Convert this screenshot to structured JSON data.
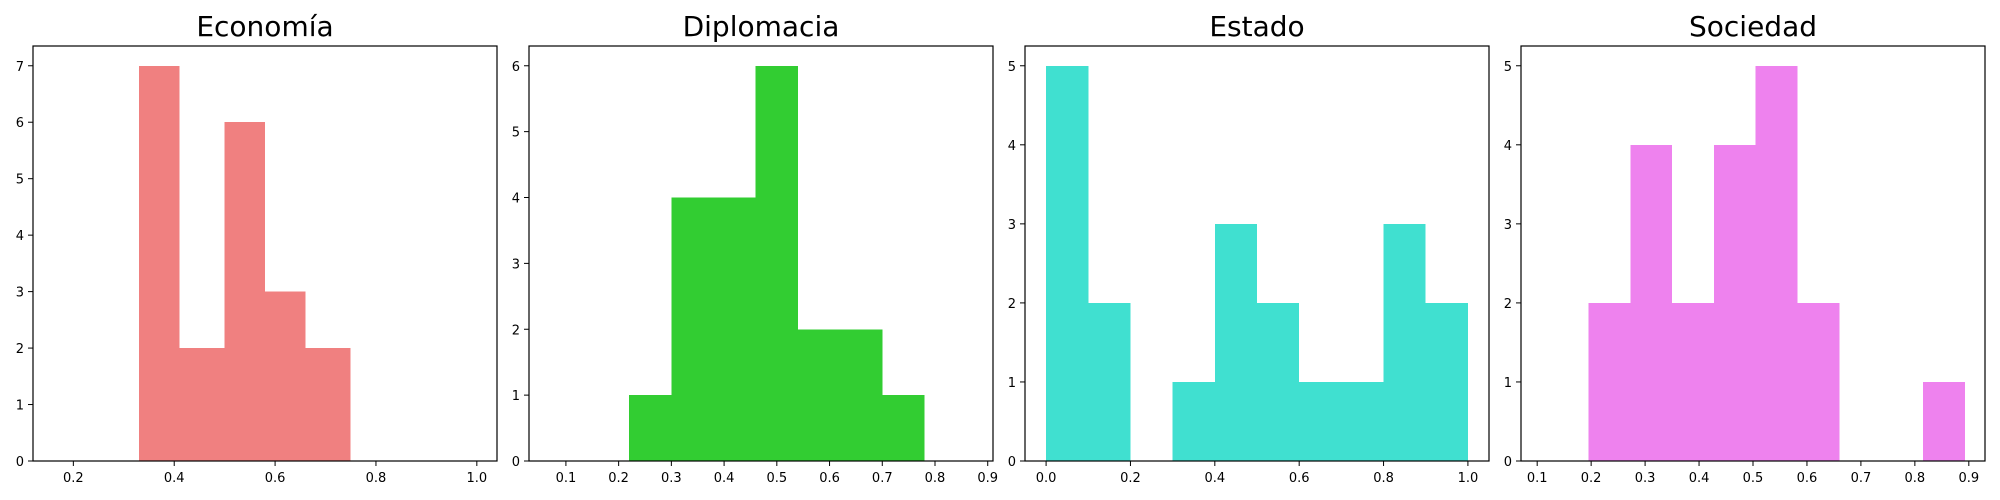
{
  "chart_data": [
    {
      "type": "bar",
      "title": "Economía",
      "color": "#F08080",
      "xlim": [
        0.12,
        1.04
      ],
      "ylim": [
        0,
        7.35
      ],
      "xticks": [
        "0.2",
        "0.4",
        "0.6",
        "0.8",
        "1.0"
      ],
      "yticks": [
        "0",
        "1",
        "2",
        "3",
        "4",
        "5",
        "6",
        "7"
      ],
      "bins": [
        {
          "x0": 0.33,
          "x1": 0.41,
          "value": 7
        },
        {
          "x0": 0.41,
          "x1": 0.5,
          "value": 2
        },
        {
          "x0": 0.5,
          "x1": 0.58,
          "value": 6
        },
        {
          "x0": 0.58,
          "x1": 0.66,
          "value": 3
        },
        {
          "x0": 0.66,
          "x1": 0.75,
          "value": 2
        }
      ]
    },
    {
      "type": "bar",
      "title": "Diplomacia",
      "color": "#32CD32",
      "xlim": [
        0.03,
        0.91
      ],
      "ylim": [
        0,
        6.3
      ],
      "xticks": [
        "0.1",
        "0.2",
        "0.3",
        "0.4",
        "0.5",
        "0.6",
        "0.7",
        "0.8",
        "0.9"
      ],
      "yticks": [
        "0",
        "1",
        "2",
        "3",
        "4",
        "5",
        "6"
      ],
      "bins": [
        {
          "x0": 0.22,
          "x1": 0.3,
          "value": 1
        },
        {
          "x0": 0.3,
          "x1": 0.38,
          "value": 4
        },
        {
          "x0": 0.38,
          "x1": 0.46,
          "value": 4
        },
        {
          "x0": 0.46,
          "x1": 0.54,
          "value": 6
        },
        {
          "x0": 0.54,
          "x1": 0.62,
          "value": 2
        },
        {
          "x0": 0.62,
          "x1": 0.7,
          "value": 2
        },
        {
          "x0": 0.7,
          "x1": 0.78,
          "value": 1
        }
      ]
    },
    {
      "type": "bar",
      "title": "Estado",
      "color": "#40E0D0",
      "xlim": [
        -0.05,
        1.05
      ],
      "ylim": [
        0,
        5.25
      ],
      "xticks": [
        "0.0",
        "0.2",
        "0.4",
        "0.6",
        "0.8",
        "1.0"
      ],
      "yticks": [
        "0",
        "1",
        "2",
        "3",
        "4",
        "5"
      ],
      "bins": [
        {
          "x0": 0.0,
          "x1": 0.1,
          "value": 5
        },
        {
          "x0": 0.1,
          "x1": 0.2,
          "value": 2
        },
        {
          "x0": 0.2,
          "x1": 0.3,
          "value": 0
        },
        {
          "x0": 0.3,
          "x1": 0.4,
          "value": 1
        },
        {
          "x0": 0.4,
          "x1": 0.5,
          "value": 3
        },
        {
          "x0": 0.5,
          "x1": 0.6,
          "value": 2
        },
        {
          "x0": 0.6,
          "x1": 0.7,
          "value": 1
        },
        {
          "x0": 0.7,
          "x1": 0.8,
          "value": 1
        },
        {
          "x0": 0.8,
          "x1": 0.9,
          "value": 3
        },
        {
          "x0": 0.9,
          "x1": 1.0,
          "value": 2
        }
      ]
    },
    {
      "type": "bar",
      "title": "Sociedad",
      "color": "#EE82EE",
      "xlim": [
        0.07,
        0.93
      ],
      "ylim": [
        0,
        5.25
      ],
      "xticks": [
        "0.1",
        "0.2",
        "0.3",
        "0.4",
        "0.5",
        "0.6",
        "0.7",
        "0.8",
        "0.9"
      ],
      "yticks": [
        "0",
        "1",
        "2",
        "3",
        "4",
        "5"
      ],
      "bins": [
        {
          "x0": 0.195,
          "x1": 0.2725,
          "value": 2
        },
        {
          "x0": 0.2725,
          "x1": 0.35,
          "value": 4
        },
        {
          "x0": 0.35,
          "x1": 0.4275,
          "value": 2
        },
        {
          "x0": 0.4275,
          "x1": 0.505,
          "value": 4
        },
        {
          "x0": 0.505,
          "x1": 0.5825,
          "value": 5
        },
        {
          "x0": 0.5825,
          "x1": 0.66,
          "value": 2
        },
        {
          "x0": 0.66,
          "x1": 0.7375,
          "value": 0
        },
        {
          "x0": 0.7375,
          "x1": 0.815,
          "value": 0
        },
        {
          "x0": 0.815,
          "x1": 0.8925,
          "value": 1
        }
      ]
    }
  ]
}
